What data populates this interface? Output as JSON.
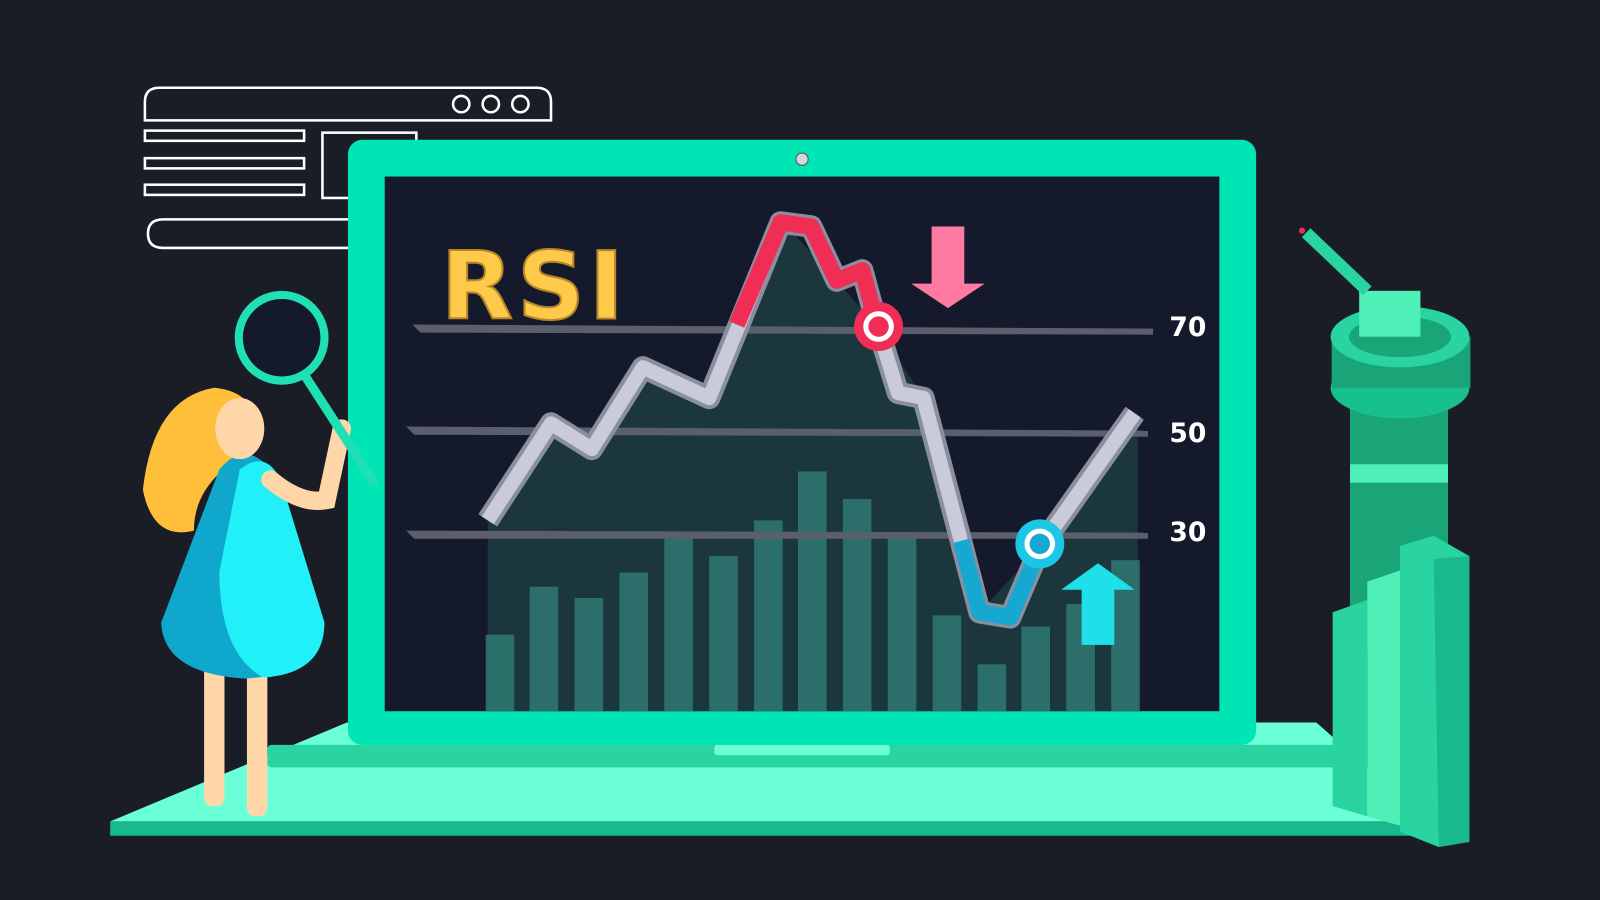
{
  "title": "RSI",
  "levels": [
    70,
    50,
    30
  ]
}
